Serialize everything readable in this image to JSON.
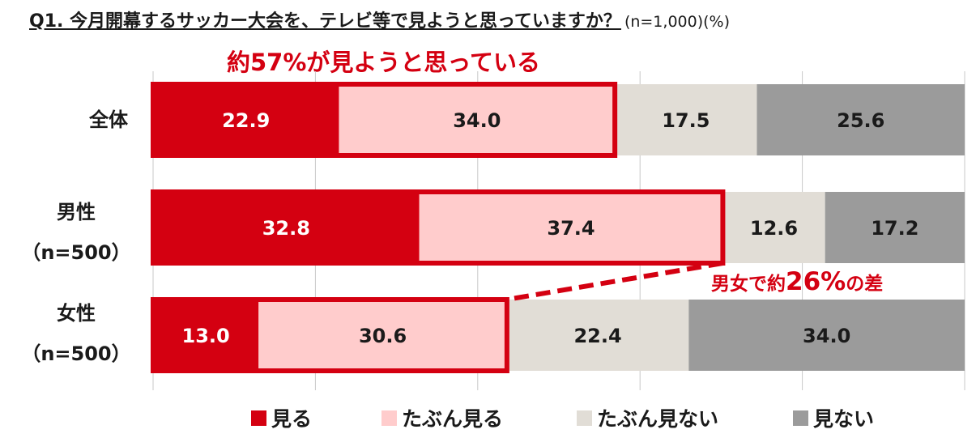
{
  "title": {
    "question": "Q1. 今月開幕するサッカー大会を、テレビ等で見ようと思っていますか？",
    "note": "(n=1,000)(%)"
  },
  "annotations": {
    "headline": "約57%が見ようと思っている",
    "diff_prefix": "男女で約",
    "diff_number": "26%",
    "diff_suffix": "の差"
  },
  "rows": [
    {
      "label": "全体",
      "sublabel": ""
    },
    {
      "label": "男性",
      "sublabel": "（n=500）"
    },
    {
      "label": "女性",
      "sublabel": "（n=500）"
    }
  ],
  "colors": {
    "miru": "#d40011",
    "tabun_miru": "#ffcccc",
    "tabun_minai": "#e1ddd6",
    "minai": "#9b9b9b",
    "highlight": "#d40011",
    "grid": "#c8c8c8"
  },
  "chart_data": {
    "type": "bar",
    "orientation": "horizontal",
    "stacked": true,
    "categories": [
      "全体",
      "男性（n=500）",
      "女性（n=500）"
    ],
    "series": [
      {
        "name": "見る",
        "values": [
          22.9,
          32.8,
          13.0
        ]
      },
      {
        "name": "たぶん見る",
        "values": [
          34.0,
          37.4,
          30.6
        ]
      },
      {
        "name": "たぶん見ない",
        "values": [
          17.5,
          12.6,
          22.4
        ]
      },
      {
        "name": "見ない",
        "values": [
          25.6,
          17.2,
          34.0
        ]
      }
    ],
    "xlim": [
      0,
      100
    ],
    "grid": true,
    "legend": "bottom"
  }
}
